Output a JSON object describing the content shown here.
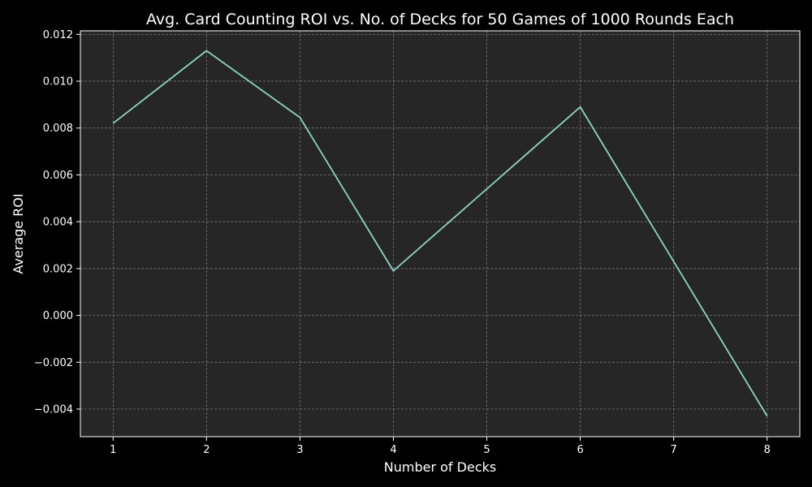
{
  "chart_data": {
    "type": "line",
    "title": "Avg. Card Counting ROI vs. No. of Decks for 50 Games of 1000 Rounds Each",
    "xlabel": "Number of Decks",
    "ylabel": "Average ROI",
    "x": [
      1,
      2,
      3,
      4,
      5,
      6,
      7,
      8
    ],
    "series": [
      {
        "values": [
          0.0082,
          0.0113,
          0.00845,
          0.0019,
          0.0054,
          0.0089,
          0.0023,
          -0.0043
        ]
      }
    ],
    "x_ticks": [
      1,
      2,
      3,
      4,
      5,
      6,
      7,
      8
    ],
    "x_tick_labels": [
      "1",
      "2",
      "3",
      "4",
      "5",
      "6",
      "7",
      "8"
    ],
    "y_ticks": [
      -0.004,
      -0.002,
      0.0,
      0.002,
      0.004,
      0.006,
      0.008,
      0.01,
      0.012
    ],
    "y_tick_labels": [
      "−0.004",
      "−0.002",
      "0.000",
      "0.002",
      "0.004",
      "0.006",
      "0.008",
      "0.010",
      "0.012"
    ],
    "xlim": [
      0.65,
      8.35
    ],
    "ylim": [
      -0.00518,
      0.01215
    ],
    "grid": true,
    "colors": {
      "figure_background": "#000000",
      "plot_background": "#262626",
      "line": "#8dd3c7",
      "grid": "#808080",
      "text": "#ffffff",
      "spine": "#ffffff"
    }
  }
}
